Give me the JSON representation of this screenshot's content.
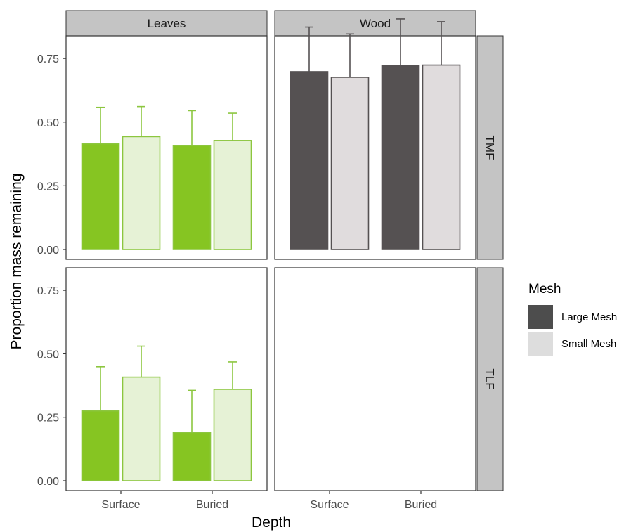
{
  "chart_data": {
    "type": "bar",
    "xlabel": "Depth",
    "ylabel": "Proportion mass remaining",
    "ylim": [
      0,
      0.8
    ],
    "yticks": [
      0,
      0.25,
      0.5,
      0.75
    ],
    "ytick_labels": [
      "0.00",
      "0.25",
      "0.50",
      "0.75"
    ],
    "categories": [
      "Surface",
      "Buried"
    ],
    "columns": [
      "Leaves",
      "Wood"
    ],
    "rows": [
      "TMF",
      "TLF"
    ],
    "legend": {
      "title": "Mesh",
      "position": "right",
      "entries": [
        "Large Mesh",
        "Small Mesh"
      ]
    },
    "colors": {
      "leaves_large": "#86c522",
      "leaves_small": "#e6f2d6",
      "leaves_outline": "#8cc63f",
      "wood_large": "#555152",
      "wood_small": "#e0dcdd",
      "wood_outline": "#555152",
      "errorbar_leaves": "#8cc63f",
      "errorbar_wood": "#555152",
      "legend_large": "#4d4d4d",
      "legend_small": "#dddddd",
      "strip_fill": "#c4c4c4"
    },
    "panels": [
      {
        "column": "Leaves",
        "row": "TMF",
        "series": [
          {
            "mesh": "Large Mesh",
            "values": [
              0.415,
              0.408
            ],
            "errors": [
              0.143,
              0.137
            ]
          },
          {
            "mesh": "Small Mesh",
            "values": [
              0.443,
              0.428
            ],
            "errors": [
              0.118,
              0.107
            ]
          }
        ]
      },
      {
        "column": "Wood",
        "row": "TMF",
        "series": [
          {
            "mesh": "Large Mesh",
            "values": [
              0.698,
              0.722
            ],
            "errors": [
              0.175,
              0.183
            ]
          },
          {
            "mesh": "Small Mesh",
            "values": [
              0.676,
              0.724
            ],
            "errors": [
              0.17,
              0.17
            ]
          }
        ]
      },
      {
        "column": "Leaves",
        "row": "TLF",
        "series": [
          {
            "mesh": "Large Mesh",
            "values": [
              0.275,
              0.19
            ],
            "errors": [
              0.174,
              0.166
            ]
          },
          {
            "mesh": "Small Mesh",
            "values": [
              0.408,
              0.36
            ],
            "errors": [
              0.122,
              0.108
            ]
          }
        ]
      },
      {
        "column": "Wood",
        "row": "TLF",
        "series": []
      }
    ]
  }
}
